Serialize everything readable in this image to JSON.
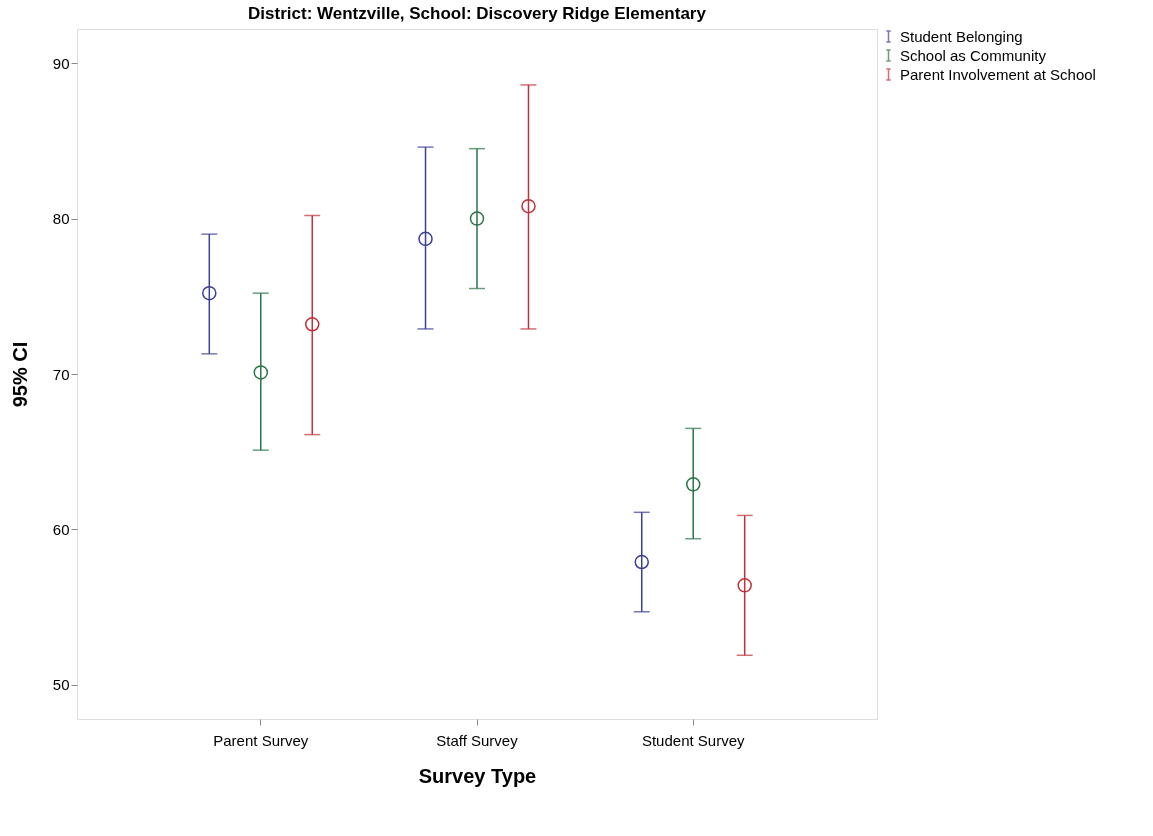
{
  "chart_data": {
    "type": "scatter",
    "title": "District: Wentzville, School: Discovery Ridge Elementary",
    "xlabel": "Survey Type",
    "ylabel": "95% CI",
    "categories": [
      "Parent Survey",
      "Staff Survey",
      "Student Survey"
    ],
    "series": [
      {
        "name": "Student Belonging",
        "color": "#3b3f97",
        "values": [
          75.2,
          78.7,
          57.9
        ],
        "errors": [
          [
            71.3,
            79.0
          ],
          [
            72.9,
            84.6
          ],
          [
            54.7,
            61.1
          ]
        ]
      },
      {
        "name": "School as Community",
        "color": "#2a7449",
        "values": [
          70.1,
          80.0,
          62.9
        ],
        "errors": [
          [
            65.1,
            75.2
          ],
          [
            75.5,
            84.5
          ],
          [
            59.4,
            66.5
          ]
        ]
      },
      {
        "name": "Parent Involvement at School",
        "color": "#c2303a",
        "values": [
          73.2,
          80.8,
          56.4
        ],
        "errors": [
          [
            66.1,
            80.2
          ],
          [
            72.9,
            88.6
          ],
          [
            51.9,
            60.9
          ]
        ]
      }
    ],
    "ylim": [
      47.8,
      92.2
    ],
    "yticks": [
      50,
      60,
      70,
      80,
      90
    ],
    "grid": false,
    "legend": "top right",
    "marker": "circle"
  }
}
